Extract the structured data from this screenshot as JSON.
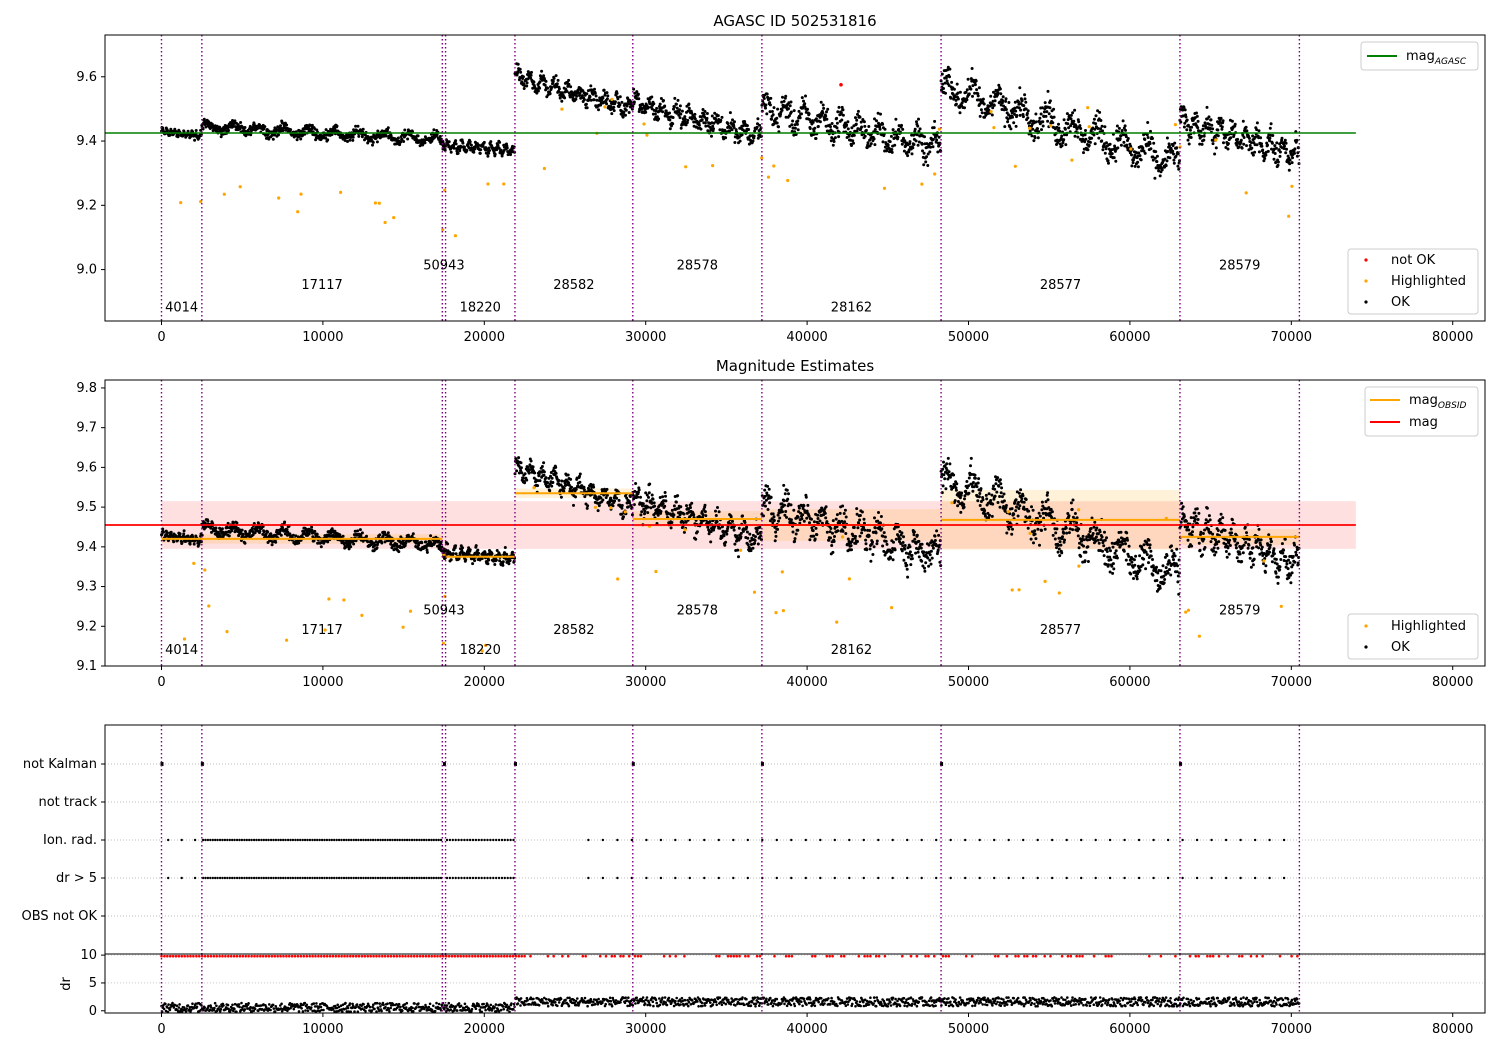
{
  "chart_data": [
    {
      "type": "scatter",
      "title": "AGASC ID 502531816",
      "xlim": [
        -3500,
        82000
      ],
      "ylim": [
        8.84,
        9.73
      ],
      "x_ticks": [
        0,
        10000,
        20000,
        30000,
        40000,
        50000,
        60000,
        70000,
        80000
      ],
      "y_ticks": [
        9.0,
        9.2,
        9.4,
        9.6
      ],
      "y_tick_labels": [
        "9.0",
        "9.2",
        "9.4",
        "9.6"
      ],
      "mag_agasc": 9.425,
      "legend_top": {
        "position": "top-right",
        "entries": [
          {
            "label": "mag",
            "subscript": "AGASC",
            "color": "#008000"
          }
        ]
      },
      "legend_bottom": {
        "position": "bottom-right",
        "entries": [
          {
            "label": "not OK",
            "color": "#ff0000"
          },
          {
            "label": "Highlighted",
            "color": "#ffa500"
          },
          {
            "label": "OK",
            "color": "#000000"
          }
        ]
      }
    },
    {
      "type": "scatter",
      "title": "Magnitude Estimates",
      "xlim": [
        -3500,
        82000
      ],
      "ylim": [
        9.1,
        9.82
      ],
      "x_ticks": [
        0,
        10000,
        20000,
        30000,
        40000,
        50000,
        60000,
        70000,
        80000
      ],
      "y_ticks": [
        9.1,
        9.2,
        9.3,
        9.4,
        9.5,
        9.6,
        9.7,
        9.8
      ],
      "y_tick_labels": [
        "9.1",
        "9.2",
        "9.3",
        "9.4",
        "9.5",
        "9.6",
        "9.7",
        "9.8"
      ],
      "mag": 9.455,
      "mag_band": [
        9.395,
        9.515
      ],
      "legend_top": {
        "position": "top-right",
        "entries": [
          {
            "label": "mag",
            "subscript": "OBSID",
            "color": "#ffa500"
          },
          {
            "label": "mag",
            "color": "#ff0000"
          }
        ]
      },
      "legend_bottom": {
        "position": "bottom-right",
        "entries": [
          {
            "label": "Highlighted",
            "color": "#ffa500"
          },
          {
            "label": "OK",
            "color": "#000000"
          }
        ]
      }
    },
    {
      "type": "scatter",
      "title": "",
      "xlim": [
        -3500,
        82000
      ],
      "categories": [
        "not Kalman",
        "not track",
        "Ion. rad.",
        "dr > 5",
        "OBS not OK"
      ]
    },
    {
      "type": "scatter",
      "title": "",
      "ylabel": "dr",
      "xlim": [
        -3500,
        82000
      ],
      "ylim": [
        -0.4,
        10.2
      ],
      "x_ticks": [
        0,
        10000,
        20000,
        30000,
        40000,
        50000,
        60000,
        70000,
        80000
      ],
      "y_ticks": [
        0,
        5,
        10
      ],
      "y_tick_labels": [
        "0",
        "5",
        "10"
      ]
    }
  ],
  "x_tick_labels": [
    "0",
    "10000",
    "20000",
    "30000",
    "40000",
    "50000",
    "60000",
    "70000",
    "80000"
  ],
  "observations": [
    {
      "obsid": "4014",
      "start": 0,
      "end": 2500,
      "mag": 9.42,
      "err": 0.01,
      "y_top": 9.42,
      "y_bot": 9.42,
      "label_pos_top": 8.87,
      "label_pos_mid": 9.13
    },
    {
      "obsid": "17117",
      "start": 2500,
      "end": 17400,
      "mag": 9.42,
      "err": 0.012,
      "label_pos_top": 8.94,
      "label_pos_mid": 9.18
    },
    {
      "obsid": "50943",
      "start": 17400,
      "end": 17600,
      "mag": 9.38,
      "err": 0.01,
      "label_pos_top": 9.0,
      "label_pos_mid": 9.23
    },
    {
      "obsid": "18220",
      "start": 17600,
      "end": 21900,
      "mag": 9.375,
      "err": 0.01,
      "label_pos_top": 8.87,
      "label_pos_mid": 9.13
    },
    {
      "obsid": "28582",
      "start": 21900,
      "end": 29200,
      "mag": 9.535,
      "err": 0.012,
      "label_pos_top": 8.94,
      "label_pos_mid": 9.18
    },
    {
      "obsid": "28578",
      "start": 29200,
      "end": 37200,
      "mag": 9.47,
      "err": 0.02,
      "label_pos_top": 9.0,
      "label_pos_mid": 9.23
    },
    {
      "obsid": "28162",
      "start": 37200,
      "end": 48300,
      "mag": 9.455,
      "err": 0.04,
      "label_pos_top": 8.87,
      "label_pos_mid": 9.13
    },
    {
      "obsid": "28577",
      "start": 48300,
      "end": 63100,
      "mag": 9.468,
      "err": 0.075,
      "label_pos_top": 8.94,
      "label_pos_mid": 9.18
    },
    {
      "obsid": "28579",
      "start": 63100,
      "end": 70500,
      "mag": 9.425,
      "err": 0.02,
      "label_pos_top": 9.0,
      "label_pos_mid": 9.23
    }
  ],
  "boundaries": [
    0,
    2500,
    17400,
    17600,
    21900,
    29200,
    37200,
    48300,
    63100,
    70500
  ],
  "colors": {
    "ok": "#000000",
    "highlighted": "#ffa500",
    "not_ok": "#ff0000",
    "agasc": "#008000",
    "mag": "#ff0000",
    "boundary": "#800080"
  }
}
